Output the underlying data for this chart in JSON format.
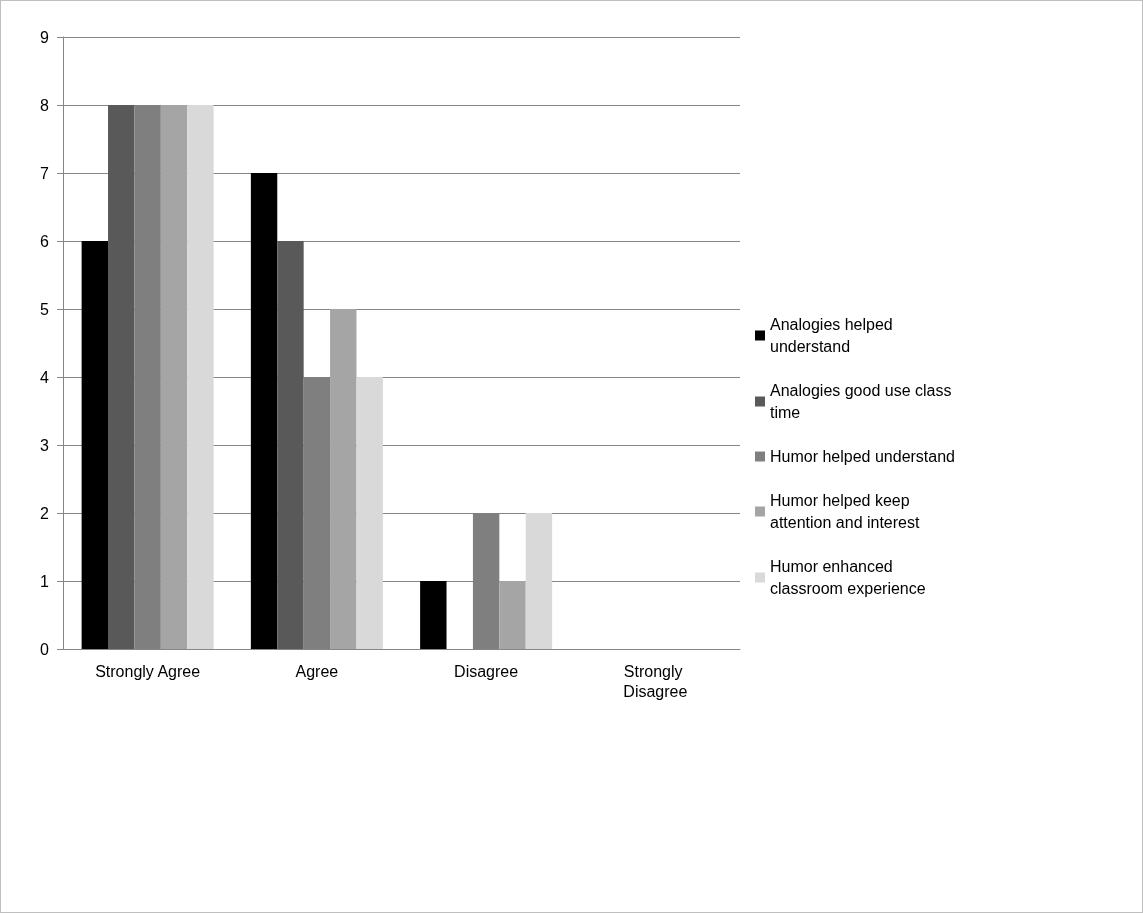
{
  "chart_data": {
    "type": "bar",
    "categories": [
      "Strongly Agree",
      "Agree",
      "Disagree",
      "Strongly Disagree"
    ],
    "series": [
      {
        "name": "Analogies helped understand",
        "color": "#000000",
        "values": [
          6,
          7,
          1,
          0
        ]
      },
      {
        "name": "Analogies good use class time",
        "color": "#595959",
        "values": [
          8,
          6,
          0,
          0
        ]
      },
      {
        "name": "Humor helped understand",
        "color": "#7f7f7f",
        "values": [
          8,
          4,
          2,
          0
        ]
      },
      {
        "name": "Humor helped keep attention and interest",
        "color": "#a5a5a5",
        "values": [
          8,
          5,
          1,
          0
        ]
      },
      {
        "name": "Humor enhanced classroom experience",
        "color": "#d9d9d9",
        "values": [
          8,
          4,
          2,
          0
        ]
      }
    ],
    "ylim": [
      0,
      9
    ],
    "yticks": [
      0,
      1,
      2,
      3,
      4,
      5,
      6,
      7,
      8,
      9
    ],
    "grid": "y",
    "legend": "right"
  }
}
